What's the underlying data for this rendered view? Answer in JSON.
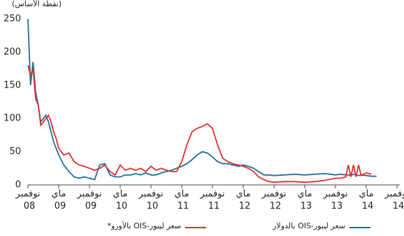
{
  "chart_data": {
    "type": "line",
    "y_axis_label": "(نقطة الأساس)",
    "x": [
      0,
      0.5,
      1,
      1.5,
      2,
      2.5,
      3,
      3.5,
      4,
      4.5,
      5,
      5.5,
      6,
      7,
      8,
      9,
      10,
      11,
      12,
      13,
      14,
      15,
      16,
      17,
      18,
      19,
      20,
      21,
      22,
      23,
      24,
      25,
      26,
      27,
      28,
      29,
      30,
      31,
      32,
      33,
      34,
      35,
      36,
      37,
      38,
      39,
      40,
      41,
      42,
      43,
      44,
      45,
      46,
      47,
      48,
      50,
      52,
      54,
      56,
      58,
      60,
      61,
      62,
      62.5,
      63,
      63.5,
      64,
      64.5,
      65,
      66,
      67,
      68
    ],
    "series": [
      {
        "name": "سعر ليبور-OIS بالدولار",
        "color": "#1f6f9a",
        "values": [
          250,
          150,
          185,
          140,
          120,
          95,
          100,
          105,
          95,
          80,
          65,
          55,
          45,
          30,
          20,
          12,
          10,
          12,
          10,
          8,
          30,
          32,
          15,
          12,
          12,
          15,
          15,
          17,
          15,
          18,
          15,
          15,
          18,
          20,
          22,
          25,
          28,
          32,
          38,
          45,
          50,
          48,
          42,
          35,
          32,
          32,
          30,
          28,
          30,
          28,
          25,
          20,
          15,
          15,
          14,
          15,
          16,
          15,
          16,
          17,
          15,
          16,
          15,
          15,
          14,
          16,
          15,
          14,
          15,
          14,
          13,
          13
        ]
      },
      {
        "name": "سعر ليبور-OIS بالأورو*",
        "color": "#e0302a",
        "values": [
          180,
          165,
          175,
          130,
          120,
          90,
          95,
          100,
          105,
          95,
          80,
          70,
          55,
          45,
          48,
          35,
          30,
          28,
          25,
          22,
          25,
          30,
          20,
          15,
          30,
          22,
          25,
          22,
          25,
          20,
          28,
          22,
          25,
          22,
          20,
          20,
          35,
          60,
          80,
          85,
          88,
          92,
          85,
          60,
          40,
          35,
          32,
          30,
          28,
          25,
          20,
          12,
          8,
          5,
          4,
          5,
          5,
          4,
          5,
          7,
          10,
          10,
          12,
          30,
          12,
          30,
          12,
          30,
          14,
          18,
          16,
          null
        ]
      }
    ],
    "xlim": [
      0,
      72
    ],
    "xticks": [
      {
        "value": 0,
        "label": "نوفمبر 08"
      },
      {
        "value": 6,
        "label": "ماي 09"
      },
      {
        "value": 12,
        "label": "نوفمبر 09"
      },
      {
        "value": 18,
        "label": "ماي 10"
      },
      {
        "value": 24,
        "label": "نوفمبر 10"
      },
      {
        "value": 30,
        "label": "ماي 11"
      },
      {
        "value": 36,
        "label": "نوفمبر 11"
      },
      {
        "value": 42,
        "label": "ماي 12"
      },
      {
        "value": 48,
        "label": "نوفمبر 12"
      },
      {
        "value": 54,
        "label": "ماي 13"
      },
      {
        "value": 60,
        "label": "نوفمبر 13"
      },
      {
        "value": 66,
        "label": "ماي 14"
      },
      {
        "value": 72,
        "label": "نوفمبر 14"
      }
    ],
    "ylim": [
      0,
      250
    ],
    "yticks": [
      0,
      50,
      100,
      150,
      200,
      250
    ],
    "grid": false
  }
}
